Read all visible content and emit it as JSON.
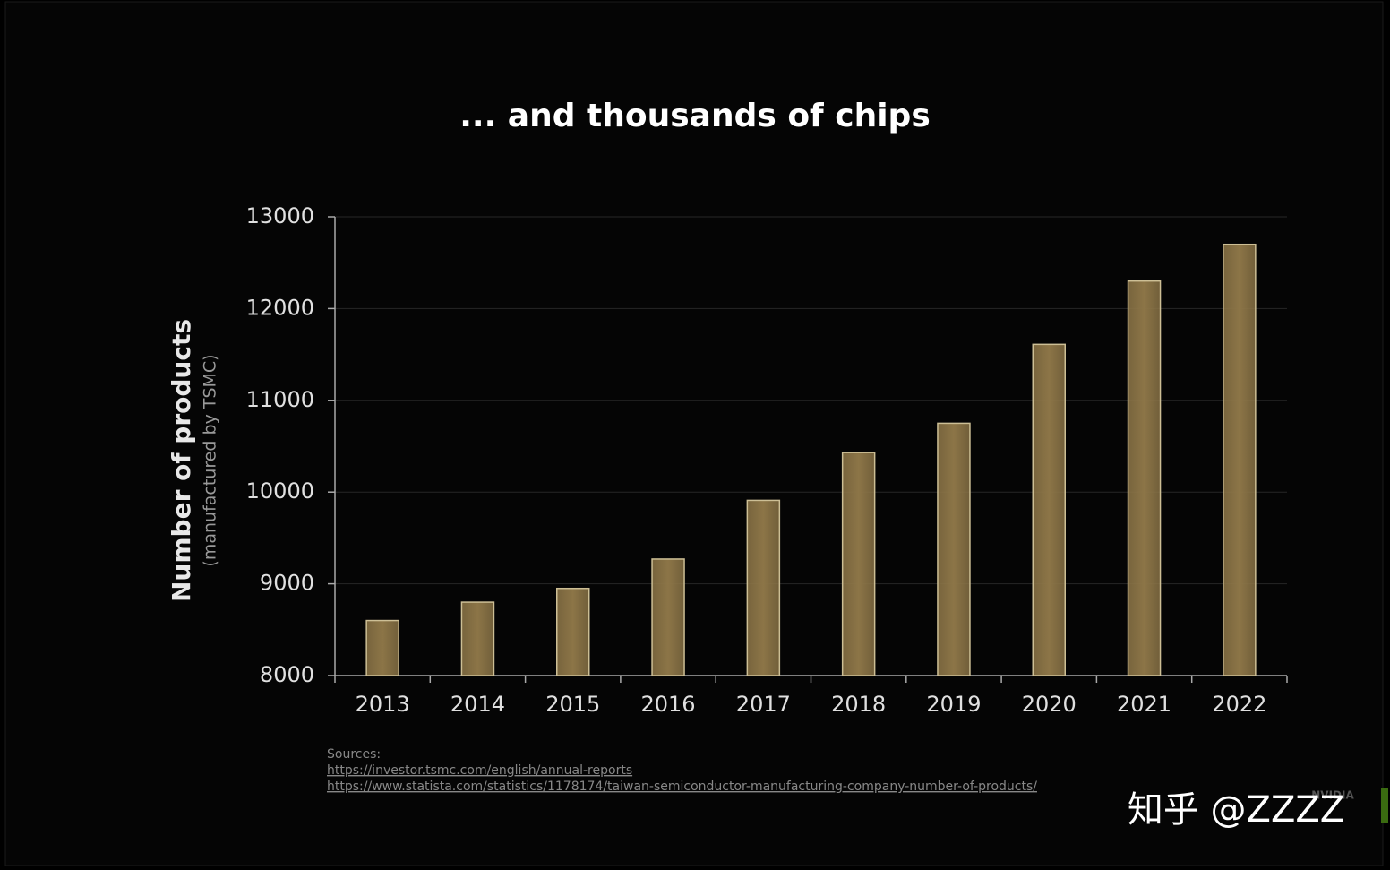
{
  "chart_data": {
    "type": "bar",
    "title": "... and thousands of chips",
    "y_label": "Number of products",
    "y_sublabel": "(manufactured by TSMC)",
    "categories": [
      "2013",
      "2014",
      "2015",
      "2016",
      "2017",
      "2018",
      "2019",
      "2020",
      "2021",
      "2022"
    ],
    "values": [
      8600,
      8800,
      8950,
      9270,
      9910,
      10430,
      10750,
      11610,
      12300,
      12700
    ],
    "color": "#8c7547",
    "ylim": [
      8000,
      13000
    ],
    "yticks": [
      8000,
      9000,
      10000,
      11000,
      12000,
      13000
    ],
    "grid": true,
    "sources_label": "Sources:",
    "sources": [
      "https://investor.tsmc.com/english/annual-reports",
      "https://www.statista.com/statistics/1178174/taiwan-semiconductor-manufacturing-company-number-of-products/"
    ],
    "logo": "NVIDIA",
    "watermark": "知乎 @ZZZZ"
  }
}
